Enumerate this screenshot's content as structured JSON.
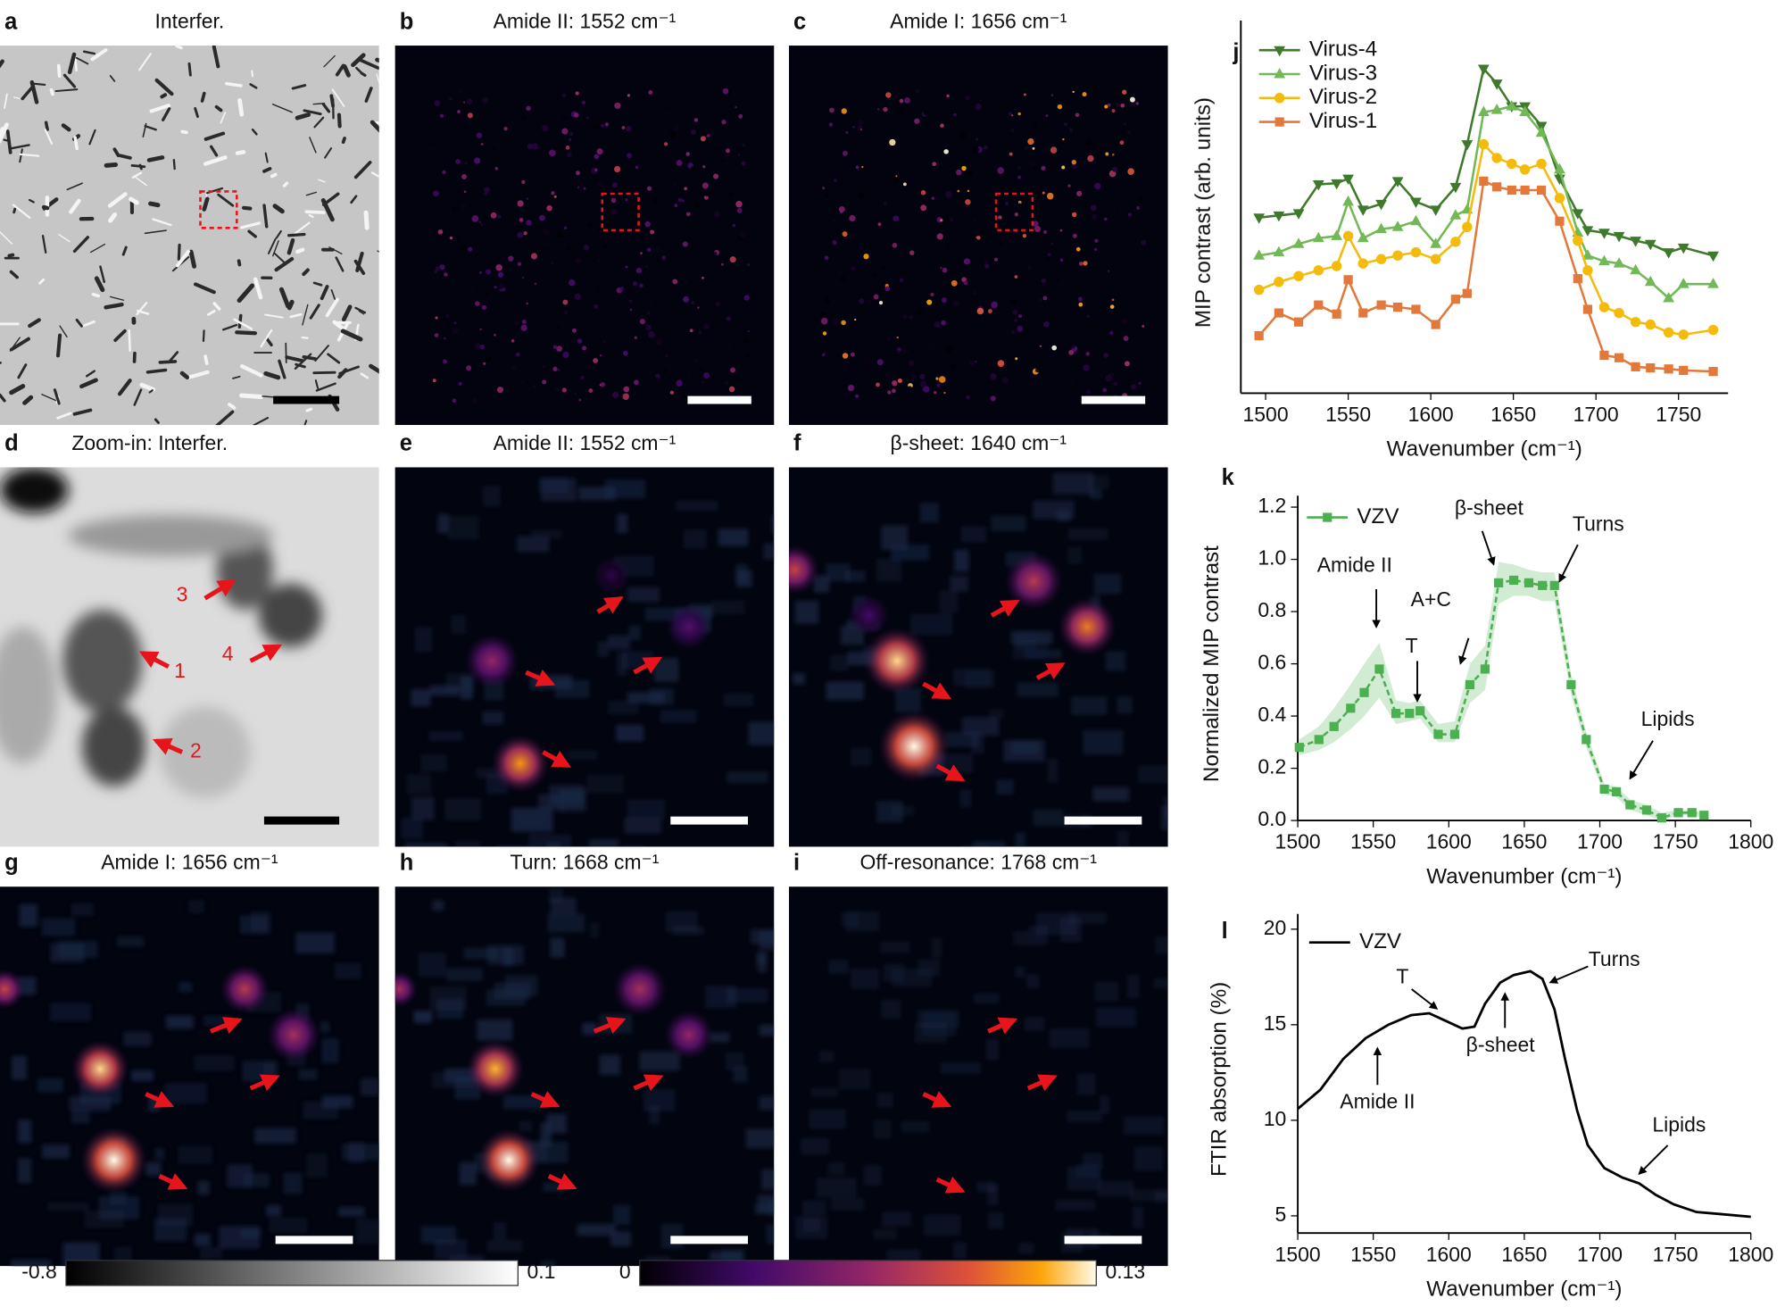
{
  "panels": [
    {
      "letter": "a",
      "title": "Interfer."
    },
    {
      "letter": "b",
      "title": "Amide II: 1552 cm⁻¹"
    },
    {
      "letter": "c",
      "title": "Amide I: 1656 cm⁻¹"
    },
    {
      "letter": "d",
      "title": "Zoom-in: Interfer.",
      "markers": [
        "1",
        "2",
        "3",
        "4"
      ]
    },
    {
      "letter": "e",
      "title": "Amide II: 1552 cm⁻¹"
    },
    {
      "letter": "f",
      "title": "β-sheet: 1640 cm⁻¹"
    },
    {
      "letter": "g",
      "title": "Amide I: 1656 cm⁻¹"
    },
    {
      "letter": "h",
      "title": "Turn: 1668 cm⁻¹"
    },
    {
      "letter": "i",
      "title": "Off-resonance: 1768 cm⁻¹"
    }
  ],
  "colorbars": [
    {
      "lim": [
        -0.8,
        0.1
      ]
    },
    {
      "lim": [
        0,
        0.13
      ]
    }
  ],
  "chart_data": [
    {
      "type": "line",
      "label": "j",
      "xlabel": "Wavenumber (cm⁻¹)",
      "ylabel": "MIP contrast (arb. units)",
      "xlim": [
        1485,
        1780
      ],
      "xticks": [
        1500,
        1550,
        1600,
        1650,
        1700,
        1750
      ],
      "ylim": [
        0,
        100
      ],
      "x": [
        1496,
        1508,
        1520,
        1532,
        1543,
        1550,
        1559,
        1570,
        1580,
        1591,
        1603,
        1615,
        1622,
        1632,
        1640,
        1649,
        1657,
        1667,
        1678,
        1689,
        1695,
        1705,
        1714,
        1724,
        1733,
        1744,
        1753,
        1771
      ],
      "series": [
        {
          "name": "Virus-4",
          "color": "#3f7a2c",
          "marker": "tri-down",
          "values": [
            48.6,
            49.2,
            49.8,
            57.8,
            58.1,
            59.4,
            50.8,
            52.4,
            58.7,
            53.0,
            50.8,
            57.1,
            68.9,
            89.8,
            85.7,
            79.4,
            79.4,
            74.0,
            59.4,
            49.8,
            45.1,
            44.4,
            43.5,
            42.2,
            41.3,
            39.0,
            40.3,
            38.1
          ]
        },
        {
          "name": "Virus-3",
          "color": "#72b856",
          "marker": "tri-up",
          "values": [
            38.1,
            39.0,
            41.3,
            42.9,
            43.5,
            53.0,
            42.9,
            45.4,
            46.0,
            47.6,
            41.3,
            49.2,
            50.8,
            77.8,
            78.4,
            79.4,
            77.8,
            72.1,
            61.9,
            44.4,
            38.1,
            36.5,
            35.9,
            34.0,
            30.8,
            26.3,
            30.2,
            30.2
          ]
        },
        {
          "name": "Virus-2",
          "color": "#f5bb0c",
          "marker": "circle",
          "values": [
            28.6,
            30.8,
            32.4,
            34.0,
            35.2,
            43.5,
            35.9,
            37.1,
            38.1,
            39.0,
            37.1,
            41.9,
            46.0,
            68.9,
            65.1,
            63.5,
            61.9,
            63.5,
            54.0,
            42.2,
            34.0,
            23.8,
            22.2,
            19.7,
            19.0,
            16.8,
            16.2,
            17.5
          ]
        },
        {
          "name": "Virus-1",
          "color": "#e2783a",
          "marker": "square",
          "values": [
            15.9,
            22.2,
            19.7,
            24.4,
            21.9,
            31.4,
            22.2,
            24.4,
            23.8,
            23.2,
            19.0,
            26.0,
            27.6,
            58.7,
            57.1,
            56.2,
            56.2,
            56.2,
            47.6,
            31.7,
            23.2,
            10.5,
            9.8,
            7.3,
            7.0,
            6.7,
            6.3,
            6.0
          ]
        }
      ]
    },
    {
      "type": "line",
      "label": "k",
      "xlabel": "Wavenumber (cm⁻¹)",
      "ylabel": "Normalized MIP contrast",
      "xlim": [
        1500,
        1800
      ],
      "xticks": [
        1500,
        1550,
        1600,
        1650,
        1700,
        1750,
        1800
      ],
      "ylim": [
        0,
        1.2
      ],
      "yticks": [
        {
          "value": 0,
          "label": "0.0"
        },
        0.2,
        0.4,
        0.6,
        0.8,
        {
          "value": 1,
          "label": "1.0"
        },
        1.2
      ],
      "x": [
        1501,
        1514,
        1524,
        1535,
        1544,
        1554,
        1565,
        1574,
        1581,
        1593,
        1604,
        1614,
        1624,
        1633,
        1643,
        1653,
        1662,
        1670,
        1681,
        1691,
        1703,
        1711,
        1720,
        1731,
        1741,
        1752,
        1761,
        1769
      ],
      "series": [
        {
          "name": "VZV",
          "color": "#4caf50",
          "marker": "square",
          "values": [
            0.28,
            0.31,
            0.36,
            0.43,
            0.49,
            0.58,
            0.41,
            0.41,
            0.42,
            0.33,
            0.33,
            0.52,
            0.58,
            0.91,
            0.92,
            0.91,
            0.9,
            0.9,
            0.52,
            0.31,
            0.12,
            0.11,
            0.06,
            0.04,
            0.01,
            0.03,
            0.03,
            0.02
          ],
          "band_lower": [
            0.25,
            0.27,
            0.3,
            0.35,
            0.4,
            0.47,
            0.37,
            0.38,
            0.39,
            0.3,
            0.3,
            0.45,
            0.5,
            0.83,
            0.86,
            0.86,
            0.84,
            0.84,
            0.48,
            0.28,
            0.1,
            0.09,
            0.04,
            0.02,
            0.0,
            0.02,
            0.02,
            0.01
          ],
          "band_upper": [
            0.31,
            0.36,
            0.43,
            0.52,
            0.6,
            0.68,
            0.46,
            0.45,
            0.46,
            0.37,
            0.38,
            0.6,
            0.67,
            0.99,
            0.98,
            0.96,
            0.95,
            0.95,
            0.56,
            0.34,
            0.14,
            0.13,
            0.08,
            0.06,
            0.03,
            0.04,
            0.04,
            0.03
          ]
        }
      ],
      "annotations": [
        "Amide II",
        "T",
        "A+C",
        "β-sheet",
        "Turns",
        "Lipids"
      ]
    },
    {
      "type": "line",
      "label": "l",
      "xlabel": "Wavenumber (cm⁻¹)",
      "ylabel": "FTIR absorption (%)",
      "xlim": [
        1500,
        1800
      ],
      "xticks": [
        1500,
        1550,
        1600,
        1650,
        1700,
        1750,
        1800
      ],
      "ylim": [
        4.1,
        20.2
      ],
      "yticks": [
        5,
        10,
        15,
        20
      ],
      "x": [
        1500,
        1515,
        1530,
        1545,
        1560,
        1575,
        1587,
        1598,
        1609,
        1617,
        1624,
        1634,
        1643,
        1654,
        1662,
        1670,
        1677,
        1685,
        1692,
        1703,
        1715,
        1726,
        1737,
        1749,
        1764,
        1779,
        1800
      ],
      "series": [
        {
          "name": "VZV",
          "color": "#000000",
          "values": [
            10.6,
            11.6,
            13.2,
            14.3,
            15.0,
            15.5,
            15.6,
            15.2,
            14.8,
            14.9,
            16.1,
            17.2,
            17.6,
            17.8,
            17.4,
            15.8,
            13.2,
            10.5,
            8.7,
            7.5,
            7.0,
            6.7,
            6.1,
            5.6,
            5.2,
            5.1,
            4.95
          ]
        }
      ],
      "annotations": [
        "T",
        "Amide II",
        "β-sheet",
        "Turns",
        "Lipids"
      ]
    }
  ]
}
